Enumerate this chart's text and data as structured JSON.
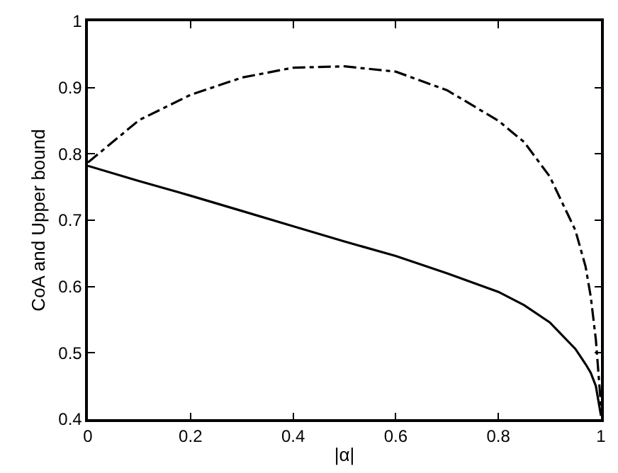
{
  "chart_data": {
    "type": "line",
    "xlabel": "|α|",
    "ylabel": "CoA and Upper bound",
    "x": [
      0,
      0.1,
      0.2,
      0.3,
      0.4,
      0.5,
      0.6,
      0.7,
      0.8,
      0.85,
      0.9,
      0.95,
      0.97,
      0.98,
      0.99,
      1
    ],
    "series": [
      {
        "color": "#000000",
        "line_style": "solid",
        "values": [
          0.782,
          0.759,
          0.737,
          0.714,
          0.691,
          0.668,
          0.646,
          0.62,
          0.592,
          0.572,
          0.546,
          0.506,
          0.483,
          0.47,
          0.45,
          0.405
        ]
      },
      {
        "color": "#000000",
        "line_style": "dashed",
        "values": [
          0.787,
          0.851,
          0.889,
          0.915,
          0.93,
          0.932,
          0.924,
          0.896,
          0.85,
          0.818,
          0.766,
          0.685,
          0.63,
          0.585,
          0.52,
          0.42
        ]
      }
    ],
    "xlim": [
      0,
      1
    ],
    "ylim": [
      0.4,
      1
    ],
    "xticks": [
      0,
      0.2,
      0.4,
      0.6,
      0.8,
      1
    ],
    "yticks": [
      0.4,
      0.5,
      0.6,
      0.7,
      0.8,
      0.9,
      1
    ]
  }
}
